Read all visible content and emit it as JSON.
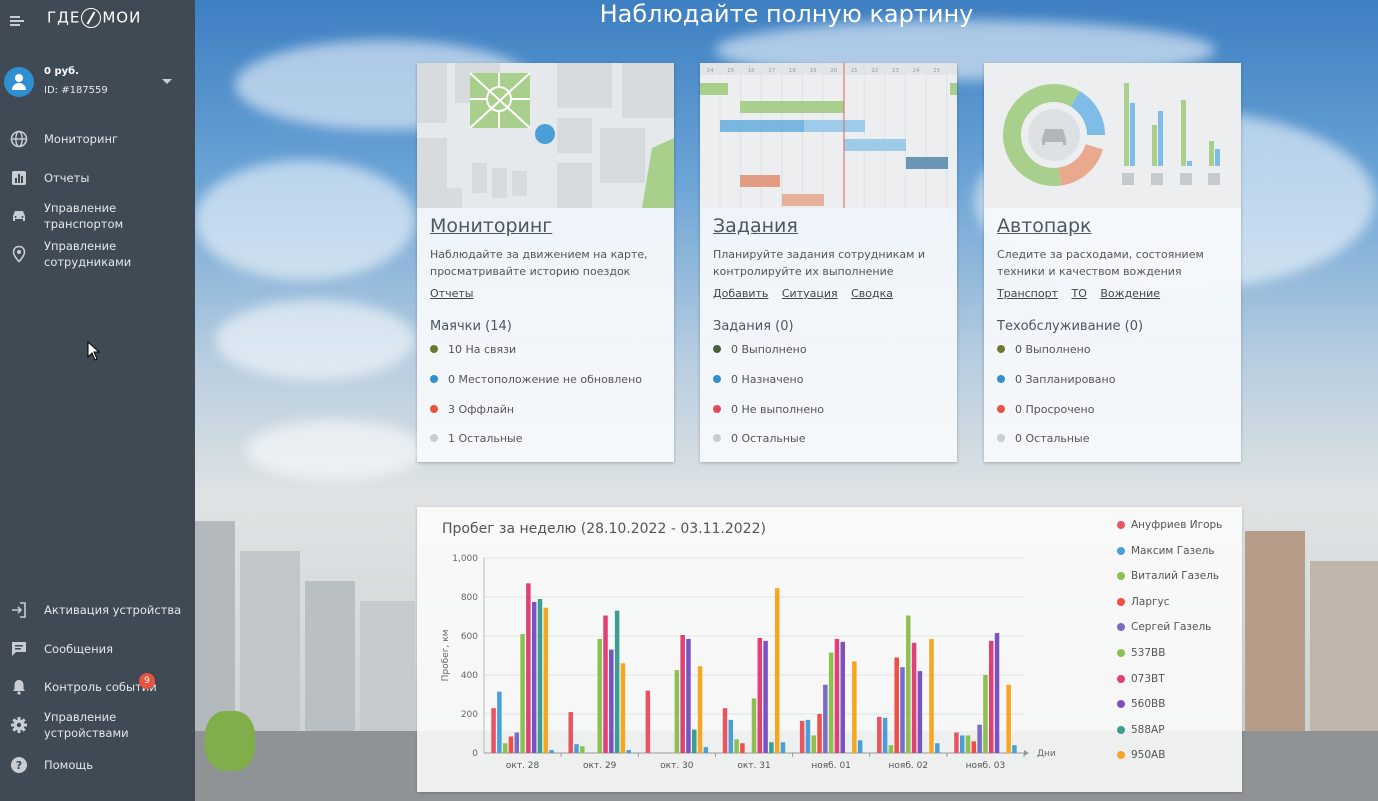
{
  "sidebar": {
    "logo_text_left": "ГДЕ",
    "logo_text_right": "МОИ",
    "account": {
      "balance": "0 руб.",
      "id": "ID: #187559"
    },
    "nav_top": [
      {
        "label": "Мониторинг",
        "icon": "globe-icon"
      },
      {
        "label": "Отчеты",
        "icon": "bar-chart-icon"
      },
      {
        "label": "Управление транспортом",
        "icon": "car-icon"
      },
      {
        "label": "Управление сотрудниками",
        "icon": "location-pin-icon"
      }
    ],
    "nav_bottom": [
      {
        "label": "Активация устройства",
        "icon": "login-icon"
      },
      {
        "label": "Сообщения",
        "icon": "message-icon"
      },
      {
        "label": "Контроль событий",
        "icon": "bell-icon",
        "badge": "9"
      },
      {
        "label": "Управление устройствами",
        "icon": "gear-icon"
      },
      {
        "label": "Помощь",
        "icon": "help-icon"
      }
    ]
  },
  "page": {
    "heading": "Наблюдайте полную картину"
  },
  "cards": [
    {
      "title": "Мониторинг",
      "desc": "Наблюдайте за движением на карте, просматривайте историю поездок",
      "links": [
        "Отчеты"
      ],
      "subtitle": "Маячки (14)",
      "stats": [
        {
          "text": "10 На связи",
          "color": "#6b7a2e"
        },
        {
          "text": "0 Местоположение не обновлено",
          "color": "#2f8fd1"
        },
        {
          "text": "3 Оффлайн",
          "color": "#e8543e"
        },
        {
          "text": "1 Остальные",
          "color": "#c9cdd0"
        }
      ]
    },
    {
      "title": "Задания",
      "desc": "Планируйте задания сотрудникам и контролируйте их выполнение",
      "links": [
        "Добавить",
        "Ситуация",
        "Сводка"
      ],
      "subtitle": "Задания (0)",
      "stats": [
        {
          "text": "0 Выполнено",
          "color": "#4b5d3a"
        },
        {
          "text": "0 Назначено",
          "color": "#2f8fd1"
        },
        {
          "text": "0 Не выполнено",
          "color": "#e04b5a"
        },
        {
          "text": "0 Остальные",
          "color": "#c9cdd0"
        }
      ]
    },
    {
      "title": "Автопарк",
      "desc": "Следите за расходами, состоянием техники и качеством вождения",
      "links": [
        "Транспорт",
        "ТО",
        "Вождение"
      ],
      "subtitle": "Техобслуживание (0)",
      "stats": [
        {
          "text": "0 Выполнено",
          "color": "#6b7a2e"
        },
        {
          "text": "0 Запланировано",
          "color": "#2f8fd1"
        },
        {
          "text": "0 Просрочено",
          "color": "#e8543e"
        },
        {
          "text": "0 Остальные",
          "color": "#c9cdd0"
        }
      ]
    }
  ],
  "gantt_ticks": [
    "14",
    "15",
    "16",
    "17",
    "18",
    "19",
    "20",
    "21",
    "22",
    "23",
    "24",
    "25"
  ],
  "chart_data": {
    "type": "bar",
    "title": "Пробег за неделю (28.10.2022 - 03.11.2022)",
    "ylabel": "Пробег, км",
    "xlabel": "Дни",
    "ylim": [
      0,
      1000
    ],
    "yticks": [
      "0",
      "200",
      "400",
      "600",
      "800",
      "1,000"
    ],
    "categories": [
      "окт. 28",
      "окт. 29",
      "окт. 30",
      "окт. 31",
      "нояб. 01",
      "нояб. 02",
      "нояб. 03"
    ],
    "legend_position": "right",
    "series": [
      {
        "name": "Ануфриев Игорь",
        "color": "#e8545f",
        "values": [
          230,
          210,
          320,
          230,
          165,
          185,
          105
        ]
      },
      {
        "name": "Максим Газель",
        "color": "#4a9fd8",
        "values": [
          315,
          45,
          0,
          170,
          170,
          180,
          90
        ]
      },
      {
        "name": "Виталий Газель",
        "color": "#8cc152",
        "values": [
          50,
          35,
          0,
          70,
          90,
          40,
          90
        ]
      },
      {
        "name": "Ларгус",
        "color": "#ee4f46",
        "values": [
          85,
          0,
          0,
          50,
          200,
          490,
          60
        ]
      },
      {
        "name": "Сергей Газель",
        "color": "#7b6bc6",
        "values": [
          105,
          0,
          0,
          0,
          350,
          440,
          145
        ]
      },
      {
        "name": "537ВВ",
        "color": "#8cc152",
        "values": [
          610,
          585,
          425,
          280,
          515,
          705,
          400
        ]
      },
      {
        "name": "073ВТ",
        "color": "#e04074",
        "values": [
          870,
          705,
          605,
          590,
          585,
          565,
          575
        ]
      },
      {
        "name": "560ВВ",
        "color": "#7b53c1",
        "values": [
          775,
          530,
          585,
          575,
          570,
          420,
          615
        ]
      },
      {
        "name": "588АР",
        "color": "#3a9e92",
        "values": [
          790,
          730,
          120,
          55,
          0,
          0,
          0
        ]
      },
      {
        "name": "950АВ",
        "color": "#f5a623",
        "values": [
          745,
          460,
          445,
          845,
          470,
          585,
          350
        ]
      },
      {
        "name": "",
        "color": "#4a9fd8",
        "values": [
          15,
          15,
          30,
          55,
          65,
          50,
          40
        ]
      }
    ]
  }
}
